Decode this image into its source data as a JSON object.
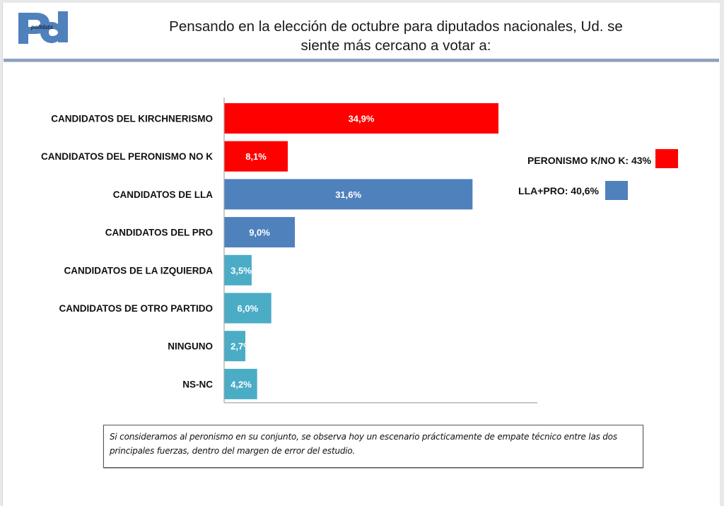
{
  "header": {
    "logo_text": "polldata",
    "title_line1": "Pensando en la elección de octubre para diputados nacionales, Ud. se",
    "title_line2": "siente más cercano a votar a:"
  },
  "colors": {
    "kirchnerismo": "#ff0000",
    "lla_pro": "#4f81bd",
    "other": "#4bacc6"
  },
  "chart_data": {
    "type": "bar",
    "orientation": "horizontal",
    "title": "Pensando en la elección de octubre para diputados nacionales, Ud. se siente más cercano a votar a:",
    "xlabel": "",
    "ylabel": "",
    "xlim": [
      0,
      40
    ],
    "grid": false,
    "categories": [
      "CANDIDATOS DEL KIRCHNERISMO",
      "CANDIDATOS DEL PERONISMO NO K",
      "CANDIDATOS DE LLA",
      "CANDIDATOS DEL PRO",
      "CANDIDATOS DE LA IZQUIERDA",
      "CANDIDATOS DE OTRO PARTIDO",
      "NINGUNO",
      "NS-NC"
    ],
    "values": [
      34.9,
      8.1,
      31.6,
      9.0,
      3.5,
      6.0,
      2.7,
      4.2
    ],
    "value_labels": [
      "34,9%",
      "8,1%",
      "31,6%",
      "9,0%",
      "3,5%",
      "6,0%",
      "2,7%",
      "4,2%"
    ],
    "bar_colors": [
      "#ff0000",
      "#ff0000",
      "#4f81bd",
      "#4f81bd",
      "#4bacc6",
      "#4bacc6",
      "#4bacc6",
      "#4bacc6"
    ],
    "legend_placement": "right",
    "legend": [
      {
        "label": "PERONISMO K/NO K: 43%",
        "color": "#ff0000",
        "value": 43
      },
      {
        "label": "LLA+PRO: 40,6%",
        "color": "#4f81bd",
        "value": 40.6
      }
    ]
  },
  "note": {
    "text": "Si consideramos al peronismo en su conjunto, se observa hoy un escenario prácticamente de empate técnico entre las dos principales fuerzas, dentro del margen de error del estudio."
  }
}
